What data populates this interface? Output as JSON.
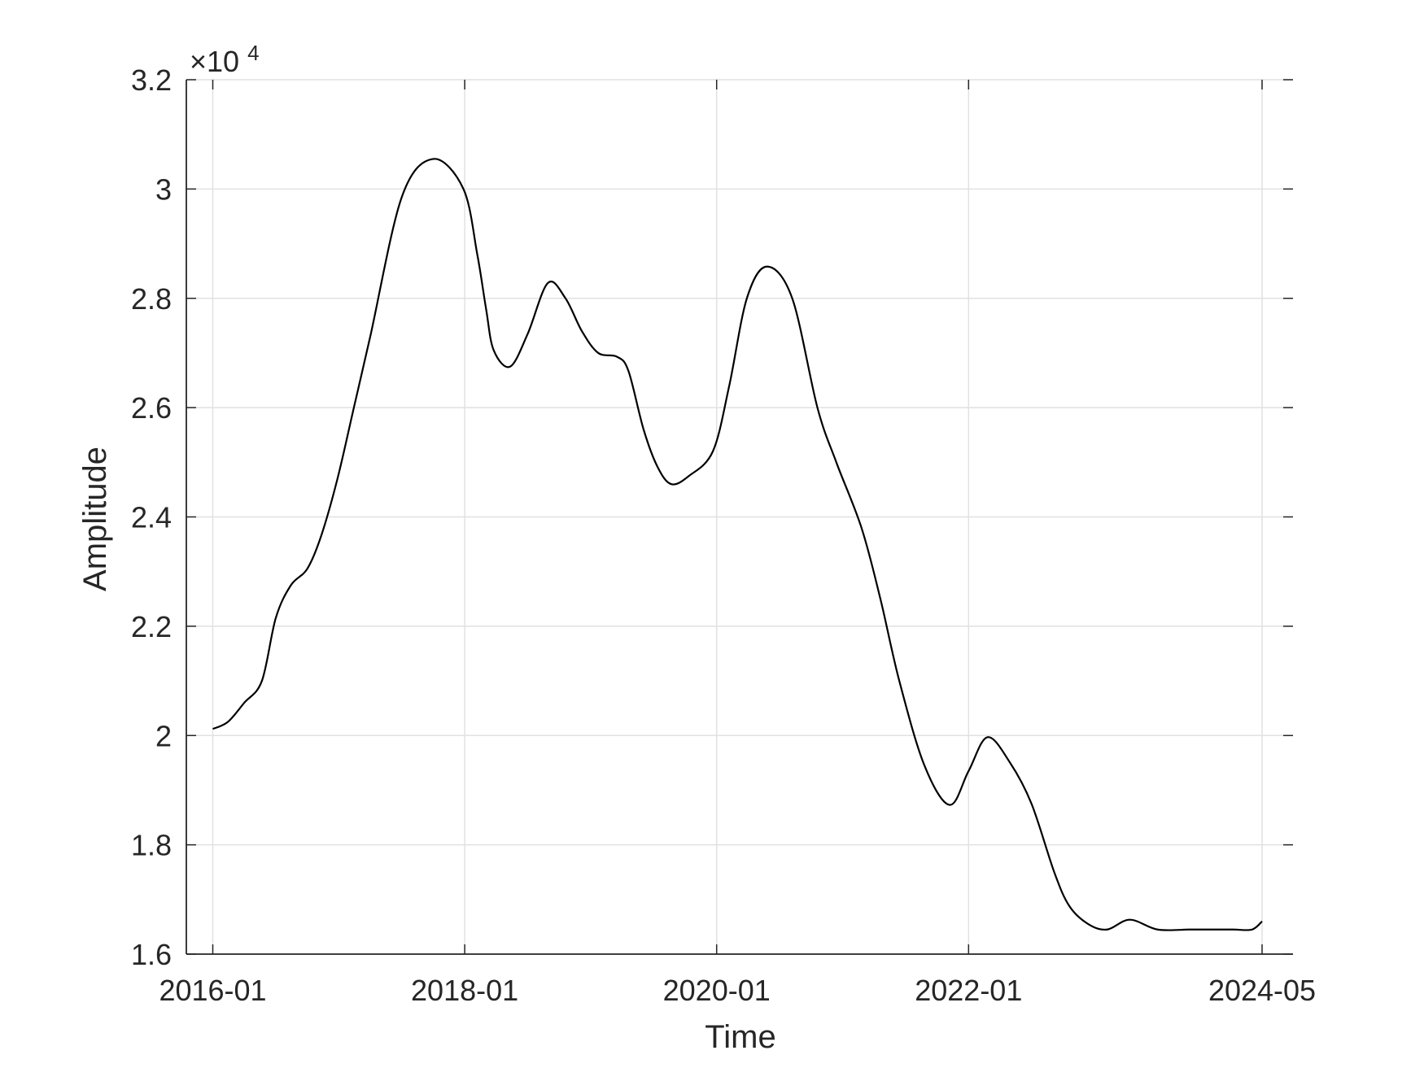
{
  "chart_data": {
    "type": "line",
    "title": "",
    "xlabel": "Time",
    "ylabel": "Amplitude",
    "y_exponent_label": {
      "base": "×10",
      "exponent": "4"
    },
    "x_axis": {
      "start": 2016.0,
      "end": 2024.33,
      "tick_values": [
        2016.0,
        2018.0,
        2020.0,
        2022.0,
        2024.33
      ],
      "tick_labels": [
        "2016-01",
        "2018-01",
        "2020-01",
        "2022-01",
        "2024-05"
      ]
    },
    "ylim": [
      1.6,
      3.2
    ],
    "y_tick_values": [
      1.6,
      1.8,
      2.0,
      2.2,
      2.4,
      2.6,
      2.8,
      3.0,
      3.2
    ],
    "y_tick_labels": [
      "1.6",
      "1.8",
      "2",
      "2.2",
      "2.4",
      "2.6",
      "2.8",
      "3",
      "3.2"
    ],
    "grid": true,
    "series": [
      {
        "name": "Amplitude",
        "color": "#000000",
        "x": [
          2016.0,
          2016.12,
          2016.25,
          2016.39,
          2016.5,
          2016.62,
          2016.75,
          2016.86,
          2016.99,
          2017.12,
          2017.25,
          2017.5,
          2017.75,
          2017.99,
          2018.1,
          2018.17,
          2018.23,
          2018.36,
          2018.5,
          2018.66,
          2018.8,
          2018.93,
          2019.06,
          2019.21,
          2019.3,
          2019.42,
          2019.53,
          2019.64,
          2019.78,
          2019.97,
          2020.1,
          2020.24,
          2020.4,
          2020.6,
          2020.8,
          2020.95,
          2021.15,
          2021.3,
          2021.45,
          2021.65,
          2021.85,
          2022.0,
          2022.15,
          2022.33,
          2022.5,
          2022.68,
          2022.8,
          2022.95,
          2023.1,
          2023.28,
          2023.5,
          2023.75,
          2023.9,
          2024.1,
          2024.25,
          2024.33
        ],
        "y": [
          2.012,
          2.025,
          2.06,
          2.1,
          2.215,
          2.275,
          2.305,
          2.365,
          2.47,
          2.6,
          2.73,
          2.985,
          3.055,
          3.0,
          2.88,
          2.78,
          2.705,
          2.675,
          2.735,
          2.828,
          2.8,
          2.74,
          2.7,
          2.693,
          2.667,
          2.56,
          2.492,
          2.46,
          2.475,
          2.52,
          2.64,
          2.8,
          2.858,
          2.8,
          2.6,
          2.5,
          2.38,
          2.25,
          2.1,
          1.945,
          1.873,
          1.935,
          1.997,
          1.95,
          1.875,
          1.75,
          1.688,
          1.655,
          1.645,
          1.663,
          1.645,
          1.645,
          1.645,
          1.645,
          1.645,
          1.66
        ]
      }
    ]
  }
}
